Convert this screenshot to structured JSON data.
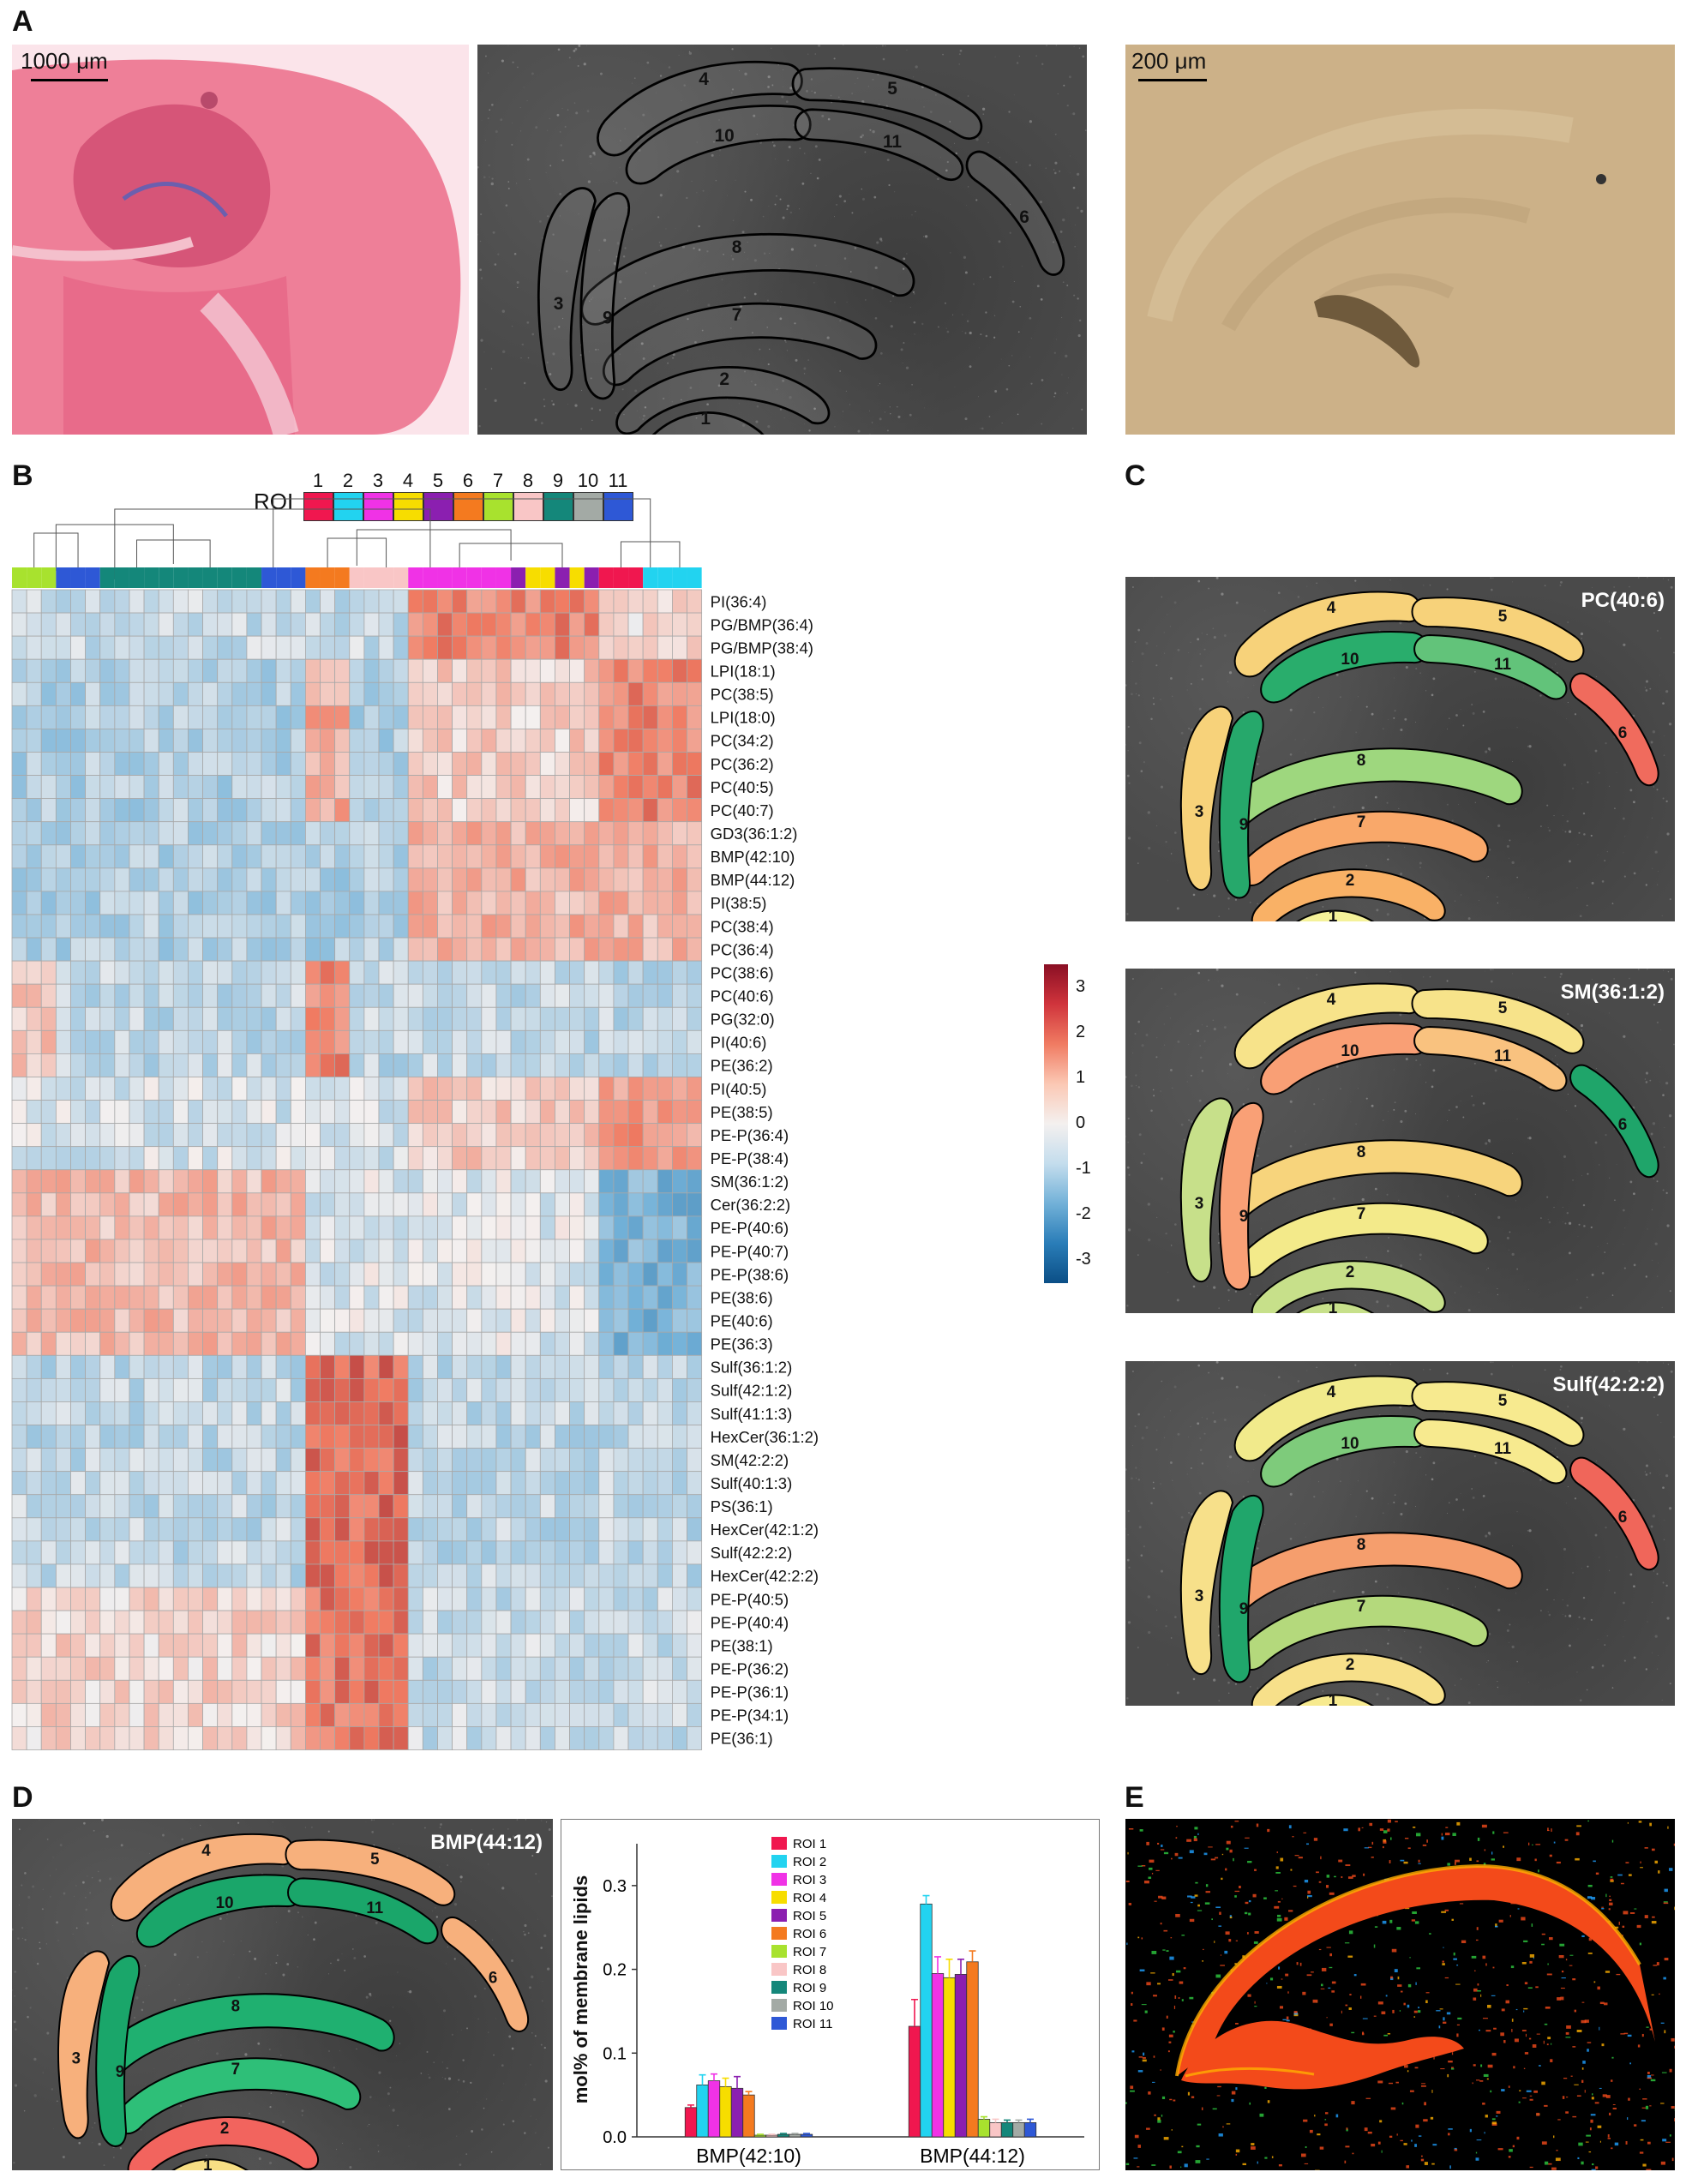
{
  "panels": {
    "A": "A",
    "B": "B",
    "C": "C",
    "D": "D",
    "E": "E"
  },
  "scalebars": {
    "he": "1000 μm",
    "bright": "200 μm"
  },
  "roi_legend": {
    "label": "ROI",
    "numbers": [
      "1",
      "2",
      "3",
      "4",
      "5",
      "6",
      "7",
      "8",
      "9",
      "10",
      "11"
    ],
    "colors": [
      "#f0174f",
      "#22d3f0",
      "#f032e6",
      "#f7dd00",
      "#8b1fb0",
      "#f47a1f",
      "#a8e22e",
      "#f9c6c6",
      "#14877a",
      "#a3aaa5",
      "#2e58d6"
    ]
  },
  "roi_numbers": [
    "1",
    "2",
    "3",
    "4",
    "5",
    "6",
    "7",
    "8",
    "9",
    "10",
    "11"
  ],
  "heatmap": {
    "column_colors": [
      "#a8e22e",
      "#a8e22e",
      "#a8e22e",
      "#2e58d6",
      "#2e58d6",
      "#2e58d6",
      "#14877a",
      "#14877a",
      "#14877a",
      "#14877a",
      "#14877a",
      "#14877a",
      "#14877a",
      "#14877a",
      "#14877a",
      "#14877a",
      "#14877a",
      "#2e58d6",
      "#2e58d6",
      "#2e58d6",
      "#f47a1f",
      "#f47a1f",
      "#f47a1f",
      "#f9c6c6",
      "#f9c6c6",
      "#f9c6c6",
      "#f9c6c6",
      "#f032e6",
      "#f032e6",
      "#f032e6",
      "#f032e6",
      "#f032e6",
      "#f032e6",
      "#f032e6",
      "#8b1fb0",
      "#f7dd00",
      "#f7dd00",
      "#8b1fb0",
      "#f7dd00",
      "#8b1fb0",
      "#f0174f",
      "#f0174f",
      "#f0174f",
      "#22d3f0",
      "#22d3f0",
      "#22d3f0",
      "#22d3f0"
    ],
    "rows": [
      "PI(36:4)",
      "PG/BMP(36:4)",
      "PG/BMP(38:4)",
      "LPI(18:1)",
      "PC(38:5)",
      "LPI(18:0)",
      "PC(34:2)",
      "PC(36:2)",
      "PC(40:5)",
      "PC(40:7)",
      "GD3(36:1:2)",
      "BMP(42:10)",
      "BMP(44:12)",
      "PI(38:5)",
      "PC(38:4)",
      "PC(36:4)",
      "PC(38:6)",
      "PC(40:6)",
      "PG(32:0)",
      "PI(40:6)",
      "PE(36:2)",
      "PI(40:5)",
      "PE(38:5)",
      "PE-P(36:4)",
      "PE-P(38:4)",
      "SM(36:1:2)",
      "Cer(36:2:2)",
      "PE-P(40:6)",
      "PE-P(40:7)",
      "PE-P(38:6)",
      "PE(38:6)",
      "PE(40:6)",
      "PE(36:3)",
      "Sulf(36:1:2)",
      "Sulf(42:1:2)",
      "Sulf(41:1:3)",
      "HexCer(36:1:2)",
      "SM(42:2:2)",
      "Sulf(40:1:3)",
      "PS(36:1)",
      "HexCer(42:1:2)",
      "Sulf(42:2:2)",
      "HexCer(42:2:2)",
      "PE-P(40:5)",
      "PE-P(40:4)",
      "PE(38:1)",
      "PE-P(36:2)",
      "PE-P(36:1)",
      "PE-P(34:1)",
      "PE(36:1)"
    ],
    "colorbar_ticks": [
      "3",
      "2",
      "1",
      "0",
      "-1",
      "-2",
      "-3"
    ],
    "colorbar_range": [
      -3.5,
      3.5
    ]
  },
  "c_panels": [
    {
      "title": "PC(40:6)",
      "fills": {
        "1": "#f5f29a",
        "2": "#f9b166",
        "3": "#f7d27a",
        "4": "#f7d27a",
        "5": "#f7d27a",
        "6": "#f06b5d",
        "7": "#f9a86a",
        "8": "#9ed77e",
        "9": "#26a86b",
        "10": "#29ad6c",
        "11": "#62c37a"
      }
    },
    {
      "title": "SM(36:1:2)",
      "fills": {
        "1": "#c7e08a",
        "2": "#c7e08a",
        "3": "#c7e08a",
        "4": "#f7e38a",
        "5": "#f7e38a",
        "6": "#1fa56a",
        "7": "#f3ea8a",
        "8": "#f7d47c",
        "9": "#f9a076",
        "10": "#f99f75",
        "11": "#f9c27f"
      }
    },
    {
      "title": "Sulf(42:2:2)",
      "fills": {
        "1": "#f7ea8f",
        "2": "#f7e08a",
        "3": "#f7e08a",
        "4": "#f1ea8b",
        "5": "#f7ea8f",
        "6": "#f0665a",
        "7": "#b4d97c",
        "8": "#f59e6d",
        "9": "#20a66b",
        "10": "#7ecb7b",
        "11": "#f7ea8f"
      }
    }
  ],
  "d_panel": {
    "title": "BMP(44:12)",
    "fills": {
      "1": "#f7df84",
      "2": "#f2645e",
      "3": "#f7b07c",
      "4": "#f7b07c",
      "5": "#f7b07c",
      "6": "#f7b07c",
      "7": "#2ebf78",
      "8": "#1fb070",
      "9": "#1aa66a",
      "10": "#1aa66a",
      "11": "#1aa66a"
    }
  },
  "chart_data": {
    "type": "bar",
    "categories": [
      "BMP(42:10)",
      "BMP(44:12)"
    ],
    "ylabel": "mol% of membrane lipids",
    "ylim": [
      0,
      0.35
    ],
    "yticks": [
      "0.0",
      "0.1",
      "0.2",
      "0.3"
    ],
    "legend_position": "top-center",
    "series": [
      {
        "name": "ROI 1",
        "color": "#f0174f",
        "values": [
          0.035,
          0.132
        ],
        "errors": [
          0.003,
          0.032
        ]
      },
      {
        "name": "ROI 2",
        "color": "#22d3f0",
        "values": [
          0.062,
          0.278
        ],
        "errors": [
          0.012,
          0.01
        ]
      },
      {
        "name": "ROI 3",
        "color": "#f032e6",
        "values": [
          0.067,
          0.195
        ],
        "errors": [
          0.008,
          0.02
        ]
      },
      {
        "name": "ROI 4",
        "color": "#f7dd00",
        "values": [
          0.06,
          0.19
        ],
        "errors": [
          0.01,
          0.022
        ]
      },
      {
        "name": "ROI 5",
        "color": "#8b1fb0",
        "values": [
          0.058,
          0.194
        ],
        "errors": [
          0.014,
          0.018
        ]
      },
      {
        "name": "ROI 6",
        "color": "#f47a1f",
        "values": [
          0.05,
          0.209
        ],
        "errors": [
          0.004,
          0.013
        ]
      },
      {
        "name": "ROI 7",
        "color": "#a8e22e",
        "values": [
          0.002,
          0.021
        ],
        "errors": [
          0.001,
          0.003
        ]
      },
      {
        "name": "ROI 8",
        "color": "#f9c6c6",
        "values": [
          0.002,
          0.017
        ],
        "errors": [
          0.001,
          0.004
        ]
      },
      {
        "name": "ROI 9",
        "color": "#14877a",
        "values": [
          0.003,
          0.017
        ],
        "errors": [
          0.001,
          0.003
        ]
      },
      {
        "name": "ROI 10",
        "color": "#a3aaa5",
        "values": [
          0.003,
          0.017
        ],
        "errors": [
          0.001,
          0.003
        ]
      },
      {
        "name": "ROI 11",
        "color": "#2e58d6",
        "values": [
          0.003,
          0.017
        ],
        "errors": [
          0.001,
          0.004
        ]
      }
    ]
  }
}
